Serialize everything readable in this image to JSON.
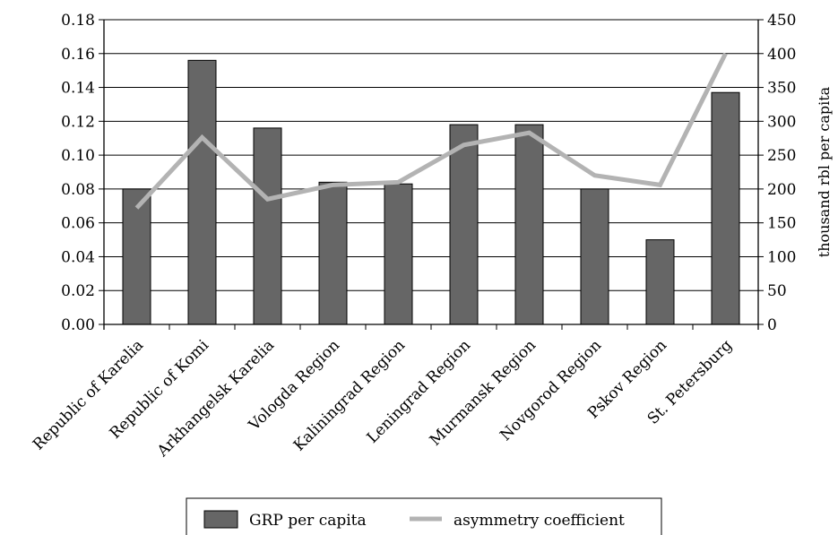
{
  "chart_data": {
    "type": "bar",
    "categories": [
      "Republic of Karelia",
      "Republic of Komi",
      "Arkhangelsk Karelia",
      "Vologda Region",
      "Kaliningrad Region",
      "Leningrad Region",
      "Murmansk Region",
      "Novgorod Region",
      "Pskov Region",
      "St. Petersburg"
    ],
    "series": [
      {
        "name": "GRP per capita",
        "type": "bar",
        "axis": "left",
        "color": "#666666",
        "values": [
          0.08,
          0.156,
          0.116,
          0.084,
          0.083,
          0.118,
          0.118,
          0.08,
          0.05,
          0.137
        ]
      },
      {
        "name": "asymmetry coefficient",
        "type": "line",
        "axis": "right",
        "color": "#b3b3b3",
        "values": [
          172,
          276,
          185,
          206,
          210,
          265,
          283,
          220,
          206,
          400
        ]
      }
    ],
    "ylim": [
      0,
      0.18
    ],
    "yticks": [
      "0.00",
      "0.02",
      "0.04",
      "0.06",
      "0.08",
      "0.10",
      "0.12",
      "0.14",
      "0.16",
      "0.18"
    ],
    "y2lim": [
      0,
      450
    ],
    "y2ticks": [
      "0",
      "50",
      "100",
      "150",
      "200",
      "250",
      "300",
      "350",
      "400",
      "450"
    ],
    "y2label": "thousand rbl per capita",
    "grid": true,
    "legend": "bottom"
  }
}
